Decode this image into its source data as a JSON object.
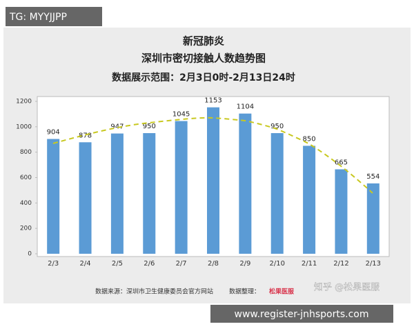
{
  "chart_data": {
    "type": "bar",
    "title": "新冠肺炎",
    "subtitle": "深圳市密切接触人数趋势图",
    "date_range": "数据展示范围：2月3日0时-2月13日24时",
    "categories": [
      "2/3",
      "2/4",
      "2/5",
      "2/6",
      "2/7",
      "2/8",
      "2/9",
      "2/10",
      "2/11",
      "2/12",
      "2/13"
    ],
    "values": [
      904,
      878,
      947,
      950,
      1045,
      1153,
      1104,
      950,
      850,
      665,
      554
    ],
    "color": "#5b9bd5",
    "ylim": [
      0,
      1200
    ],
    "yticks": [
      0,
      200,
      400,
      600,
      800,
      1000,
      1200
    ],
    "grid": false,
    "source": "数据来源：深圳市卫生健康委员会官方网站",
    "compiled_by": "数据整理：",
    "logo": "松果医服"
  },
  "overlays": {
    "tag": "TG: MYYJJPP",
    "watermark": "知乎 @松果医服",
    "url": "www.register-jnhsports.com"
  }
}
